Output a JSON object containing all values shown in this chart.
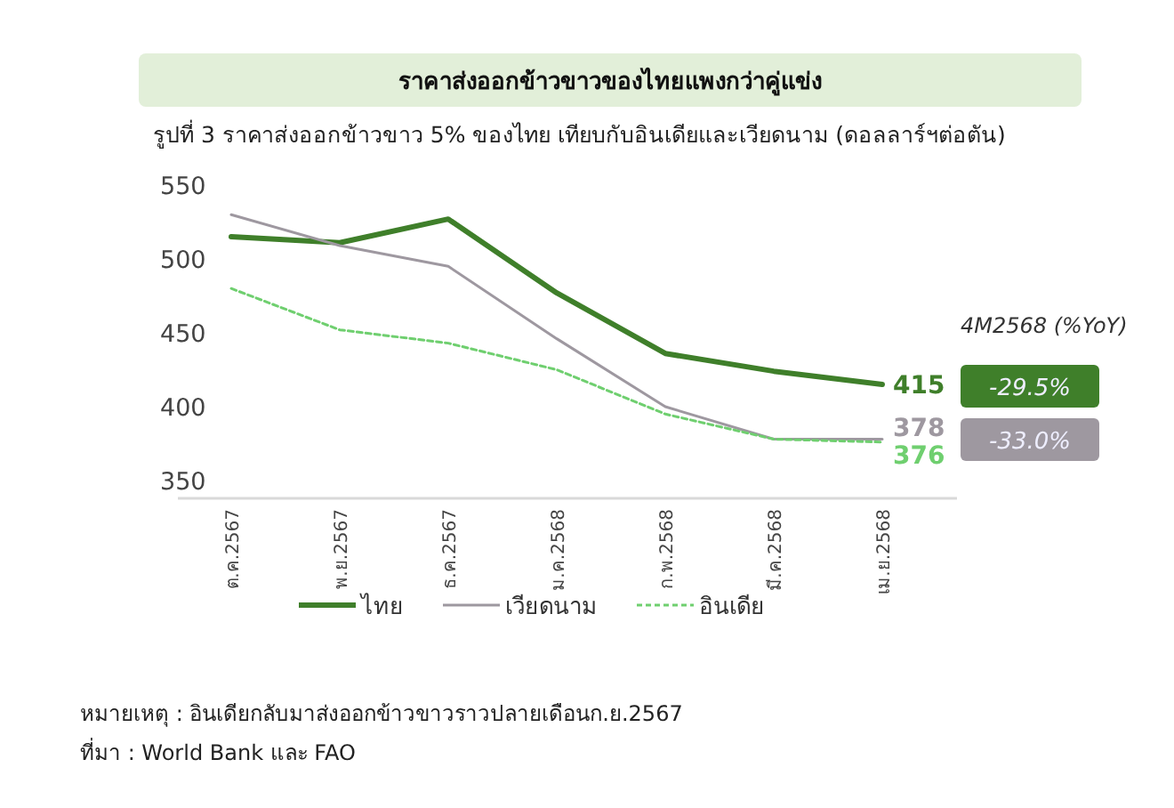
{
  "chart_data": {
    "type": "line",
    "title": "ราคาส่งออกข้าวขาวของไทยแพงกว่าคู่แข่ง",
    "subtitle": "รูปที่ 3 ราคาส่งออกข้าวขาว 5% ของไทย เทียบกับอินเดียและเวียดนาม (ดอลลาร์ฯต่อตัน)",
    "categories": [
      "ต.ค.2567",
      "พ.ย.2567",
      "ธ.ค.2567",
      "ม.ค.2568",
      "ก.พ.2568",
      "มี.ค.2568",
      "เม.ย.2568"
    ],
    "series": [
      {
        "name": "ไทย",
        "color": "#3f7f2a",
        "line_style": "solid",
        "values": [
          515,
          511,
          527,
          477,
          436,
          424,
          415
        ],
        "value_labels": [
          null,
          null,
          null,
          null,
          null,
          null,
          "415"
        ]
      },
      {
        "name": "เวียดนาม",
        "color": "#9e98a0",
        "line_style": "solid",
        "values": [
          530,
          509,
          495,
          446,
          400,
          378,
          378
        ],
        "value_labels": [
          null,
          null,
          null,
          null,
          null,
          null,
          "378"
        ]
      },
      {
        "name": "อินเดีย",
        "color": "#6fcf6f",
        "line_style": "dashed",
        "values": [
          480,
          452,
          443,
          425,
          395,
          378,
          376
        ],
        "value_labels": [
          null,
          null,
          null,
          null,
          null,
          null,
          "376"
        ]
      }
    ],
    "ylim": [
      350,
      550
    ],
    "yticks": [
      350,
      400,
      450,
      500,
      550
    ],
    "legend": "bottom",
    "grid": false,
    "annotations": [
      "4M2568 (%YoY)",
      "-29.5%",
      "-33.0%",
      "หมายเหตุ : อินเดียกลับมาส่งออกข้าวขาวราวปลายเดือนก.ย.2567",
      "ที่มา : World Bank และ FAO"
    ]
  }
}
